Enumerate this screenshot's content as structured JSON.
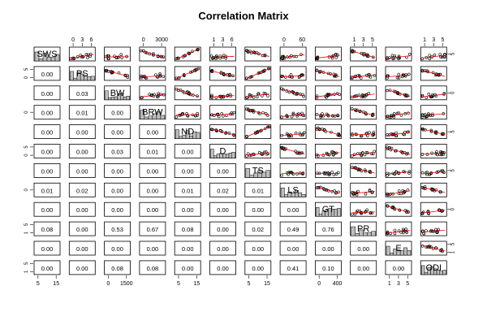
{
  "chart_data": {
    "type": "scatter-matrix",
    "title": "Correlation Matrix",
    "variables": [
      "SWS",
      "PS",
      "BW",
      "BRW",
      "ND",
      "D",
      "TS",
      "LS",
      "GT",
      "PR",
      "E",
      "ODI"
    ],
    "lower_panel_values": [
      [
        "0.00"
      ],
      [
        "0.00",
        "0.03"
      ],
      [
        "0.00",
        "0.01",
        "0.00"
      ],
      [
        "0.00",
        "0.00",
        "0.00",
        "0.00"
      ],
      [
        "0.00",
        "0.00",
        "0.03",
        "0.01",
        "0.00"
      ],
      [
        "0.00",
        "0.00",
        "0.00",
        "0.00",
        "0.00",
        "0.00"
      ],
      [
        "0.01",
        "0.02",
        "0.00",
        "0.00",
        "0.01",
        "0.02",
        "0.01"
      ],
      [
        "0.00",
        "0.00",
        "0.00",
        "0.00",
        "0.00",
        "0.00",
        "0.00",
        "0.00"
      ],
      [
        "0.08",
        "0.00",
        "0.53",
        "0.67",
        "0.08",
        "0.00",
        "0.02",
        "0.49",
        "0.76"
      ],
      [
        "0.00",
        "0.00",
        "0.00",
        "0.00",
        "0.00",
        "0.00",
        "0.00",
        "0.00",
        "0.00",
        "0.00"
      ],
      [
        "0.00",
        "0.00",
        "0.08",
        "0.08",
        "0.00",
        "0.00",
        "0.00",
        "0.41",
        "0.10",
        "0.00",
        "0.00"
      ]
    ],
    "top_axis_ticks": {
      "PS": [
        "0",
        "3",
        "6"
      ],
      "BRW": [
        "0",
        "3000"
      ],
      "D": [
        "1",
        "3",
        "6"
      ],
      "LS": [
        "0",
        "60"
      ],
      "PR": [
        "1",
        "3",
        "5"
      ],
      "ODI": [
        "1",
        "3",
        "5"
      ]
    },
    "bottom_axis_ticks": {
      "SWS": [
        "5",
        "15"
      ],
      "BW": [
        "0",
        "1500"
      ],
      "ND": [
        "5",
        "15"
      ],
      "TS": [
        "5",
        "15"
      ],
      "GT": [
        "0",
        "400"
      ],
      "E": [
        "1",
        "3",
        "5"
      ]
    },
    "left_axis_ticks": {
      "PS": [
        "0",
        "5"
      ],
      "BRW": [
        "0"
      ],
      "D": [
        "0",
        "5"
      ],
      "LS": [
        "0"
      ],
      "PR": [
        "1",
        "5"
      ],
      "ODI": [
        "1",
        "5"
      ]
    },
    "right_axis_ticks": {
      "SWS": [
        "5"
      ],
      "BW": [
        "0"
      ],
      "ND": [
        "5"
      ],
      "TS": [
        "5"
      ],
      "GT": [
        "0"
      ],
      "E": [
        "1",
        "5"
      ]
    },
    "colors": {
      "points": "#000000",
      "smooth_line": "#ff0000",
      "hist_fill": "#bebebe",
      "panel_border": "#000000"
    }
  }
}
